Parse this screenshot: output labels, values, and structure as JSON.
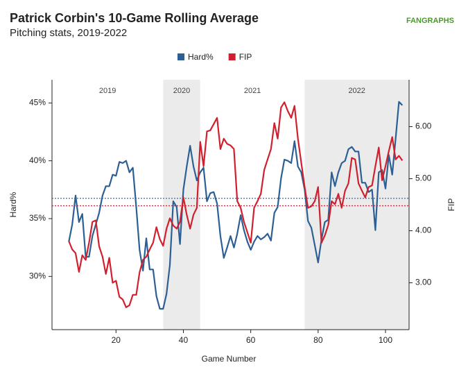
{
  "chart_data": {
    "type": "line",
    "title": "Patrick Corbin's 10-Game Rolling Average",
    "subtitle": "Pitching stats, 2019-2022",
    "logo": "FANGRAPHS",
    "xlabel": "Game Number",
    "ylabel": "Hard%",
    "y2label": "FIP",
    "xlim": [
      1,
      107
    ],
    "xticks": [
      20,
      40,
      60,
      80,
      100
    ],
    "ylim": [
      25.4,
      47.0
    ],
    "yticks": [
      {
        "value": 30,
        "label": "30%"
      },
      {
        "value": 35,
        "label": "35%"
      },
      {
        "value": 40,
        "label": "40%"
      },
      {
        "value": 45,
        "label": "45%"
      }
    ],
    "y2lim": [
      2.1,
      6.9
    ],
    "y2ticks": [
      {
        "value": 3,
        "label": "3.00"
      },
      {
        "value": 4,
        "label": "4.00"
      },
      {
        "value": 5,
        "label": "5.00"
      },
      {
        "value": 6,
        "label": "6.00"
      }
    ],
    "seasons": [
      {
        "label": "2019",
        "start": 1,
        "end": 34,
        "shaded": false
      },
      {
        "label": "2020",
        "start": 34,
        "end": 45,
        "shaded": true
      },
      {
        "label": "2021",
        "start": 45,
        "end": 76,
        "shaded": false
      },
      {
        "label": "2022",
        "start": 76,
        "end": 107,
        "shaded": true
      }
    ],
    "x": [
      6,
      7,
      8,
      9,
      10,
      11,
      12,
      13,
      14,
      15,
      16,
      17,
      18,
      19,
      20,
      21,
      22,
      23,
      24,
      25,
      26,
      27,
      28,
      29,
      30,
      31,
      32,
      33,
      34,
      35,
      36,
      37,
      38,
      39,
      40,
      41,
      42,
      43,
      44,
      45,
      46,
      47,
      48,
      49,
      50,
      51,
      52,
      53,
      54,
      55,
      56,
      57,
      58,
      59,
      60,
      61,
      62,
      63,
      64,
      65,
      66,
      67,
      68,
      69,
      70,
      71,
      72,
      73,
      74,
      75,
      76,
      77,
      78,
      79,
      80,
      81,
      82,
      83,
      84,
      85,
      86,
      87,
      88,
      89,
      90,
      91,
      92,
      93,
      94,
      95,
      96,
      97,
      98,
      99,
      100,
      101,
      102,
      103,
      104,
      105
    ],
    "series": [
      {
        "name": "Hard%",
        "color": "#2c5f93",
        "mean": 36.75,
        "values": [
          33.0,
          34.5,
          37.0,
          34.7,
          35.4,
          31.7,
          31.7,
          33.5,
          34.5,
          35.5,
          37.0,
          37.8,
          37.8,
          38.8,
          38.7,
          39.9,
          39.8,
          40.0,
          39.0,
          39.4,
          36.0,
          32.3,
          30.5,
          33.3,
          30.6,
          30.6,
          28.3,
          27.2,
          27.2,
          28.5,
          31.0,
          36.5,
          36.0,
          32.8,
          37.5,
          39.5,
          41.3,
          39.5,
          38.3,
          39.0,
          39.4,
          36.5,
          37.2,
          37.3,
          36.3,
          33.5,
          31.6,
          32.5,
          33.5,
          32.5,
          33.7,
          35.3,
          34.0,
          33.0,
          32.3,
          33.0,
          33.5,
          33.2,
          33.4,
          33.7,
          33.1,
          35.5,
          36.0,
          38.5,
          40.1,
          40.0,
          39.8,
          41.7,
          39.5,
          39.0,
          37.5,
          34.8,
          34.2,
          32.7,
          31.2,
          33.2,
          34.7,
          34.9,
          39.0,
          37.8,
          39.0,
          39.8,
          40.0,
          41.0,
          41.2,
          40.8,
          40.8,
          38.1,
          38.1,
          37.3,
          37.5,
          34.0,
          39.0,
          39.2,
          37.6,
          40.5,
          38.8,
          41.9,
          45.1,
          44.8
        ]
      },
      {
        "name": "FIP",
        "color": "#d0202e",
        "axis": "y2",
        "mean": 4.48,
        "values": [
          3.8,
          3.64,
          3.57,
          3.21,
          3.53,
          3.44,
          3.77,
          4.17,
          4.2,
          3.7,
          3.5,
          3.17,
          3.48,
          3.0,
          3.04,
          2.73,
          2.68,
          2.53,
          2.57,
          2.77,
          2.77,
          3.2,
          3.44,
          3.5,
          3.64,
          3.77,
          4.07,
          3.84,
          3.71,
          4.04,
          4.24,
          4.1,
          4.04,
          4.17,
          4.64,
          4.31,
          4.04,
          4.31,
          4.44,
          5.71,
          5.24,
          5.91,
          5.93,
          6.05,
          6.17,
          5.57,
          5.77,
          5.67,
          5.64,
          5.57,
          4.57,
          4.44,
          4.17,
          3.97,
          3.77,
          4.44,
          4.57,
          4.71,
          5.17,
          5.37,
          5.57,
          6.07,
          5.77,
          6.37,
          6.47,
          6.3,
          6.17,
          6.4,
          5.77,
          5.31,
          4.84,
          4.44,
          4.47,
          4.57,
          4.84,
          3.77,
          3.91,
          4.11,
          4.57,
          4.51,
          4.71,
          4.44,
          4.77,
          4.91,
          5.4,
          5.37,
          4.91,
          4.77,
          4.64,
          4.84,
          4.87,
          5.24,
          5.6,
          4.97,
          5.24,
          5.53,
          5.8,
          5.37,
          5.44,
          5.35
        ]
      }
    ]
  }
}
